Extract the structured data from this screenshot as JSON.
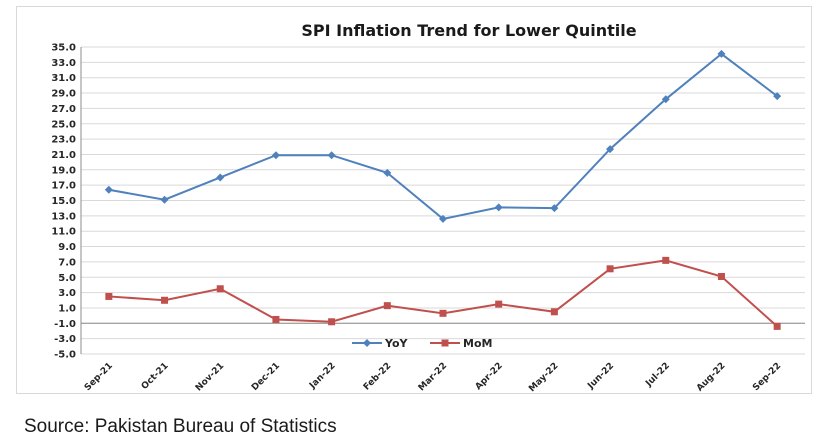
{
  "source_text": "Source: Pakistan Bureau of Statistics",
  "chart_data": {
    "type": "line",
    "title": "SPI Inflation Trend for Lower Quintile",
    "xlabel": "",
    "ylabel": "",
    "categories": [
      "Sep-21",
      "Oct-21",
      "Nov-21",
      "Dec-21",
      "Jan-22",
      "Feb-22",
      "Mar-22",
      "Apr-22",
      "May-22",
      "Jun-22",
      "Jul-22",
      "Aug-22",
      "Sep-22"
    ],
    "ylim": [
      -5.0,
      35.0
    ],
    "yticks": [
      "35.0",
      "33.0",
      "31.0",
      "29.0",
      "27.0",
      "25.0",
      "23.0",
      "21.0",
      "19.0",
      "17.0",
      "15.0",
      "13.0",
      "11.0",
      "9.0",
      "7.0",
      "5.0",
      "3.0",
      "1.0",
      "-1.0",
      "-3.0",
      "-5.0"
    ],
    "grid": true,
    "legend_position": "bottom",
    "series": [
      {
        "name": "YoY",
        "color": "#4f81bd",
        "marker": "diamond",
        "values": [
          16.4,
          15.1,
          18.0,
          20.9,
          20.9,
          18.6,
          12.6,
          14.1,
          14.0,
          21.7,
          28.2,
          34.1,
          28.6
        ]
      },
      {
        "name": "MoM",
        "color": "#c0504d",
        "marker": "square",
        "values": [
          2.5,
          2.0,
          3.5,
          -0.5,
          -0.8,
          1.3,
          0.3,
          1.5,
          0.5,
          6.1,
          7.2,
          5.1,
          -1.4
        ]
      }
    ]
  }
}
